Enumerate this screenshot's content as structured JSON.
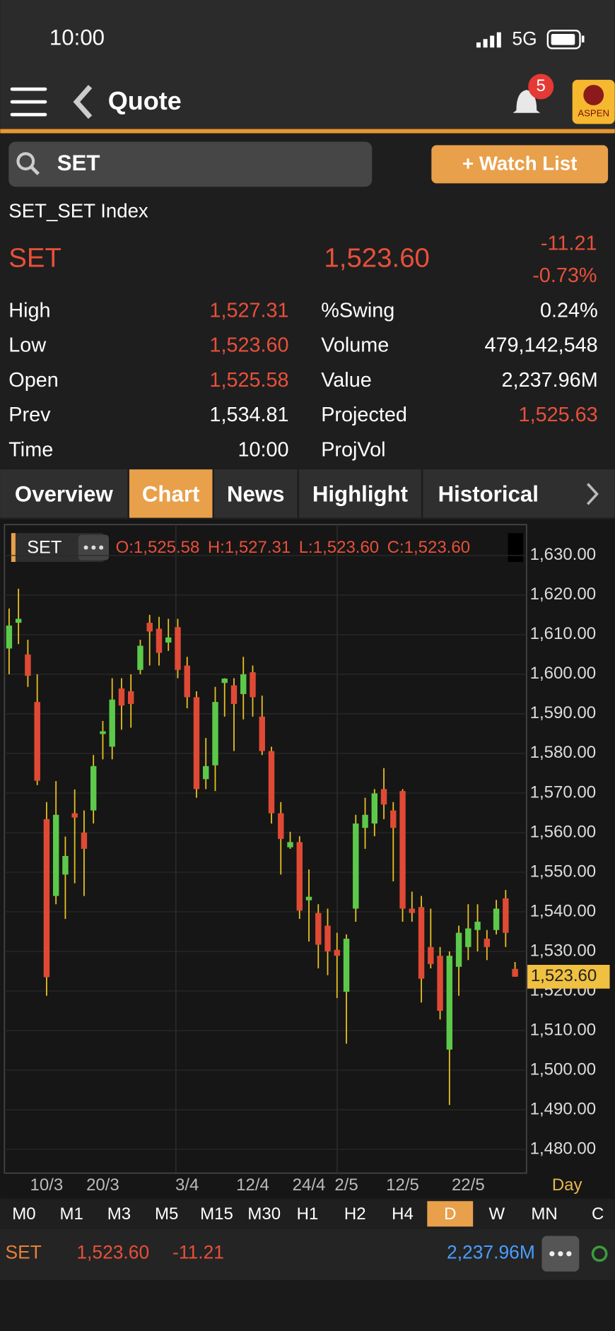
{
  "status_bar": {
    "time": "10:00",
    "network": "5G"
  },
  "header": {
    "title": "Quote",
    "badge": "5",
    "logo": "ASPEN"
  },
  "search": {
    "query": "SET",
    "button": "+ Watch List"
  },
  "quote": {
    "name": "SET_SET Index",
    "symbol": "SET",
    "last": "1,523.60",
    "change": "-11.21",
    "change_pct": "-0.73%",
    "left": [
      {
        "label": "High",
        "value": "1,527.31",
        "color": "#e8503a"
      },
      {
        "label": "Low",
        "value": "1,523.60",
        "color": "#e8503a"
      },
      {
        "label": "Open",
        "value": "1,525.58",
        "color": "#e8503a"
      },
      {
        "label": "Prev",
        "value": "1,534.81",
        "color": "#ffffff"
      },
      {
        "label": "Time",
        "value": "10:00",
        "color": "#ffffff"
      }
    ],
    "right": [
      {
        "label": "%Swing",
        "value": "0.24%",
        "color": "#ffffff"
      },
      {
        "label": "Volume",
        "value": "479,142,548",
        "color": "#ffffff"
      },
      {
        "label": "Value",
        "value": "2,237.96M",
        "color": "#ffffff"
      },
      {
        "label": "Projected",
        "value": "1,525.63",
        "color": "#e8503a"
      },
      {
        "label": "ProjVol"
      }
    ]
  },
  "tabs": {
    "items": [
      "Overview",
      "Chart",
      "News",
      "Highlight",
      "Historical"
    ],
    "active": "Chart"
  },
  "chart_data": {
    "type": "candlestick",
    "symbol": "SET",
    "ohlc_label": "O:1,525.58 H:1,527.31 L:1,523.60 C:1,523.60",
    "period": "Day",
    "up_color": "#5cc94a",
    "down_color": "#e04a35",
    "grid": true,
    "categories": [
      null,
      null,
      null,
      null,
      "10/3",
      null,
      null,
      null,
      null,
      null,
      "20/3",
      null,
      null,
      null,
      null,
      null,
      null,
      null,
      null,
      "3/4",
      null,
      null,
      null,
      null,
      null,
      null,
      "12/4",
      null,
      null,
      null,
      null,
      null,
      "24/4",
      null,
      null,
      null,
      "2/5",
      null,
      null,
      null,
      null,
      null,
      "12/5",
      null,
      null,
      null,
      null,
      null,
      null,
      "22/5",
      null,
      null,
      null,
      null,
      null
    ],
    "open": [
      1606.5,
      1613,
      1605,
      1593,
      1563.4,
      1544,
      1549.4,
      1564.9,
      1560,
      1565.6,
      1584.9,
      1581.7,
      1596.4,
      1595.7,
      1601.1,
      1613,
      1611.5,
      1608,
      1611.9,
      1602.2,
      1594.2,
      1573.5,
      1577,
      1597.8,
      1597.2,
      1595,
      1600.5,
      1589.3,
      1580.6,
      1564.9,
      1556.3,
      1557.6,
      1542.9,
      1539.7,
      1536.5,
      1530.4,
      1519.8,
      1540.8,
      1561.2,
      1562.3,
      1571,
      1565.6,
      1570.5,
      1540.8,
      1541.2,
      1531.1,
      1528.9,
      1505.2,
      1526.1,
      1531.1,
      1535.4,
      1533.2,
      1535.4,
      1543.4,
      1525.58
    ],
    "high": [
      1616.6,
      1621.6,
      1608.7,
      1600,
      1567.7,
      1573,
      1559,
      1570.9,
      1565.6,
      1579.6,
      1588.2,
      1599,
      1599,
      1600,
      1608.7,
      1615,
      1614.5,
      1614,
      1614,
      1604.4,
      1595.7,
      1583.9,
      1596.8,
      1599,
      1599,
      1604.4,
      1602.2,
      1594.6,
      1581.7,
      1567.7,
      1560.2,
      1559.1,
      1550.7,
      1541.9,
      1540.8,
      1534.7,
      1534.3,
      1564.5,
      1568.8,
      1571,
      1576.3,
      1567.7,
      1571,
      1545.1,
      1544,
      1540.8,
      1531.1,
      1530,
      1536.5,
      1541.9,
      1541.9,
      1535.4,
      1543,
      1545.5,
      1527.31
    ],
    "low": [
      1600,
      1607.6,
      1596.8,
      1572,
      1518.8,
      1541.9,
      1538.2,
      1547.2,
      1544,
      1562.3,
      1578.5,
      1578.5,
      1586,
      1586.5,
      1600,
      1602.2,
      1602.2,
      1605.9,
      1599,
      1591.4,
      1568.8,
      1571,
      1570.5,
      1589.3,
      1580.6,
      1588.6,
      1589.3,
      1579.6,
      1562.3,
      1549.4,
      1555.9,
      1538.2,
      1532.5,
      1525.7,
      1524,
      1518.2,
      1506.7,
      1537.5,
      1555.9,
      1559.1,
      1563.4,
      1547.7,
      1537.5,
      1537.5,
      1517.1,
      1525.7,
      1512.8,
      1491.2,
      1518.8,
      1527.8,
      1530,
      1527.8,
      1534.3,
      1531.1,
      1523.6
    ],
    "close": [
      1612.3,
      1614,
      1599.6,
      1573.1,
      1523.5,
      1564.5,
      1554.1,
      1563.8,
      1555.9,
      1576.8,
      1585.6,
      1593.6,
      1592.1,
      1592.5,
      1607.2,
      1610.8,
      1605.4,
      1609.3,
      1601.1,
      1594.2,
      1571,
      1576.8,
      1593,
      1598.9,
      1592.5,
      1600,
      1594.2,
      1580.6,
      1564.9,
      1558.4,
      1557.6,
      1540.3,
      1543.8,
      1531.7,
      1530,
      1528.9,
      1533.2,
      1562.3,
      1564.5,
      1569.9,
      1567.1,
      1561.2,
      1540.8,
      1539.7,
      1523.1,
      1526.8,
      1515,
      1528.9,
      1534.7,
      1535.8,
      1537.5,
      1531.1,
      1540.8,
      1534.7,
      1523.6
    ],
    "ylim": [
      1474,
      1637.8
    ],
    "yticks": [
      {
        "value": 1480,
        "label": "1,480.00"
      },
      {
        "value": 1490,
        "label": "1,490.00"
      },
      {
        "value": 1500,
        "label": "1,500.00"
      },
      {
        "value": 1510,
        "label": "1,510.00"
      },
      {
        "value": 1520,
        "label": "1,520.00"
      },
      {
        "value": 1530,
        "label": "1,530.00"
      },
      {
        "value": 1540,
        "label": "1,540.00"
      },
      {
        "value": 1550,
        "label": "1,550.00"
      },
      {
        "value": 1560,
        "label": "1,560.00"
      },
      {
        "value": 1570,
        "label": "1,570.00"
      },
      {
        "value": 1580,
        "label": "1,580.00"
      },
      {
        "value": 1590,
        "label": "1,590.00"
      },
      {
        "value": 1600,
        "label": "1,600.00"
      },
      {
        "value": 1610,
        "label": "1,610.00"
      },
      {
        "value": 1620,
        "label": "1,620.00"
      },
      {
        "value": 1630,
        "label": "1,630.00"
      }
    ],
    "last_price": {
      "value": 1523.6,
      "label": "1,523.60"
    }
  },
  "periods": {
    "items": [
      "M0",
      "M1",
      "M3",
      "M5",
      "M15",
      "M30",
      "H1",
      "H2",
      "H4",
      "D",
      "W",
      "MN",
      "C"
    ],
    "active": "D"
  },
  "footer": {
    "symbol": "SET",
    "price": "1,523.60",
    "change": "-11.21",
    "value": "2,237.96M"
  }
}
